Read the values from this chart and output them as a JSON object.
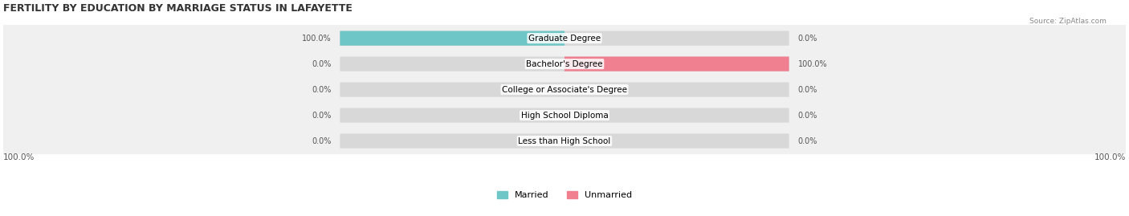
{
  "title": "FERTILITY BY EDUCATION BY MARRIAGE STATUS IN LAFAYETTE",
  "source": "Source: ZipAtlas.com",
  "categories": [
    "Less than High School",
    "High School Diploma",
    "College or Associate's Degree",
    "Bachelor's Degree",
    "Graduate Degree"
  ],
  "married_values": [
    0.0,
    0.0,
    0.0,
    0.0,
    100.0
  ],
  "unmarried_values": [
    0.0,
    0.0,
    0.0,
    100.0,
    0.0
  ],
  "married_color": "#6ec6c6",
  "unmarried_color": "#f08090",
  "bar_bg_color": "#e8e8e8",
  "row_bg_color": "#f0f0f0",
  "max_val": 100.0,
  "legend_married": "Married",
  "legend_unmarried": "Unmarried",
  "figsize": [
    14.06,
    2.69
  ],
  "dpi": 100
}
